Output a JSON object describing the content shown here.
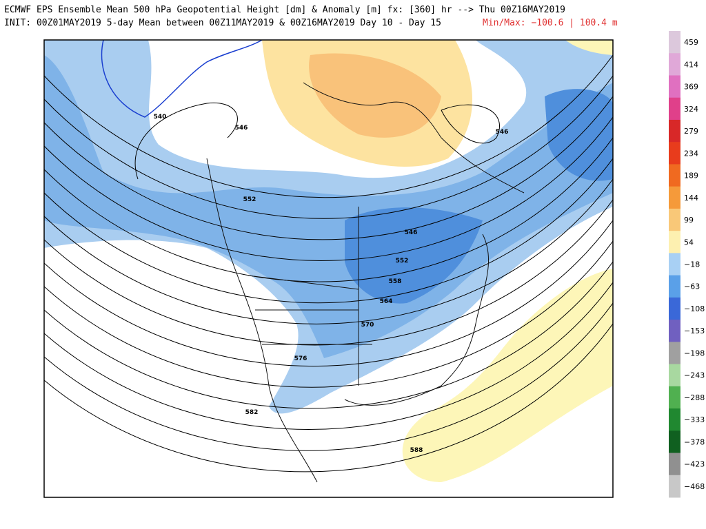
{
  "header": {
    "line1": "ECMWF EPS Ensemble Mean 500 hPa Geopotential Height [dm] & Anomaly [m] fx: [360] hr --> Thu 00Z16MAY2019",
    "line2": "INIT: 00Z01MAY2019 5-day Mean between 00Z11MAY2019 & 00Z16MAY2019   Day 10 - Day 15",
    "minmax": "Min/Max: −100.6 | 100.4 m"
  },
  "colorbar": {
    "labels": [
      "459",
      "414",
      "369",
      "324",
      "279",
      "234",
      "189",
      "144",
      "99",
      "54",
      "−18",
      "−63",
      "−108",
      "−153",
      "−198",
      "−243",
      "−288",
      "−333",
      "−378",
      "−423",
      "−468"
    ]
  },
  "contour_labels": [
    "546",
    "546",
    "552",
    "546",
    "540",
    "552",
    "558",
    "564",
    "570",
    "576",
    "582",
    "588"
  ]
}
